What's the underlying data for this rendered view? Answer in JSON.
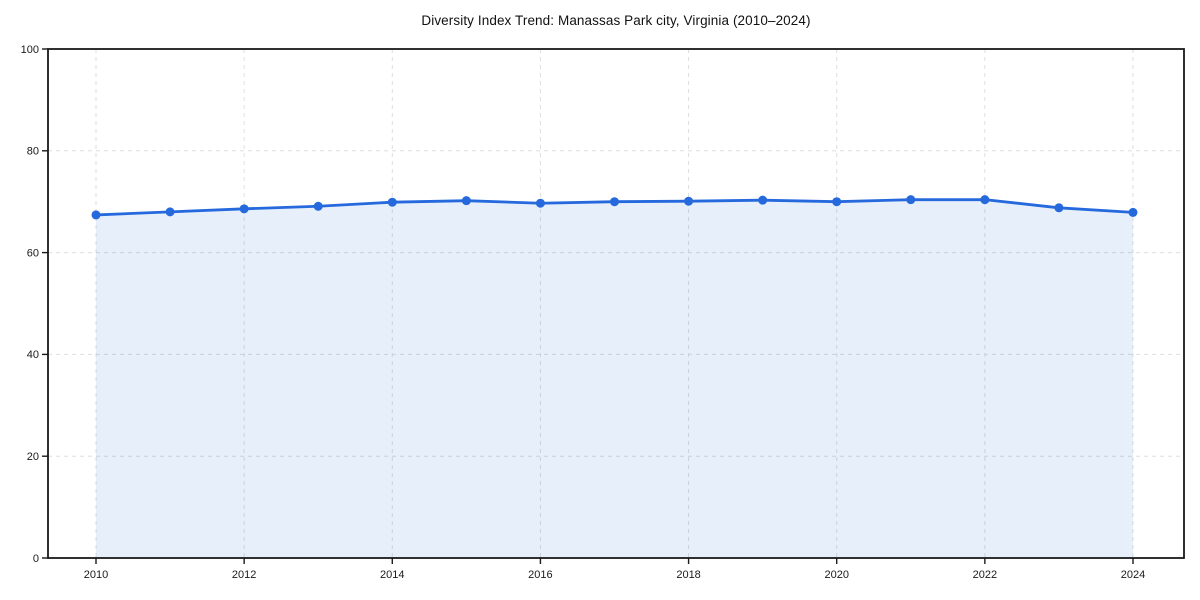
{
  "chart_data": {
    "type": "area",
    "title": "Diversity Index Trend: Manassas Park city, Virginia (2010–2024)",
    "xlabel": "",
    "ylabel": "",
    "x": [
      2010,
      2011,
      2012,
      2013,
      2014,
      2015,
      2016,
      2017,
      2018,
      2019,
      2020,
      2021,
      2022,
      2023,
      2024
    ],
    "values": [
      67.4,
      68.0,
      68.6,
      69.1,
      69.9,
      70.2,
      69.7,
      70.0,
      70.1,
      70.3,
      70.0,
      70.4,
      70.4,
      68.8,
      67.9
    ],
    "ylim": [
      0,
      100
    ],
    "yticks": [
      0,
      20,
      40,
      60,
      80,
      100
    ],
    "xticks": [
      2010,
      2012,
      2014,
      2016,
      2018,
      2020,
      2022,
      2024
    ],
    "grid": true,
    "grid_style": "dashed",
    "legend": null,
    "colors": {
      "line": "#2569dd",
      "marker": "#2569dd",
      "fill": "rgba(37,105,221,0.11)",
      "grid": "#dedede",
      "spine": "#1a1a1a",
      "tick_label": "#1a1a1a",
      "title": "#111111",
      "background": "#ffffff"
    }
  }
}
